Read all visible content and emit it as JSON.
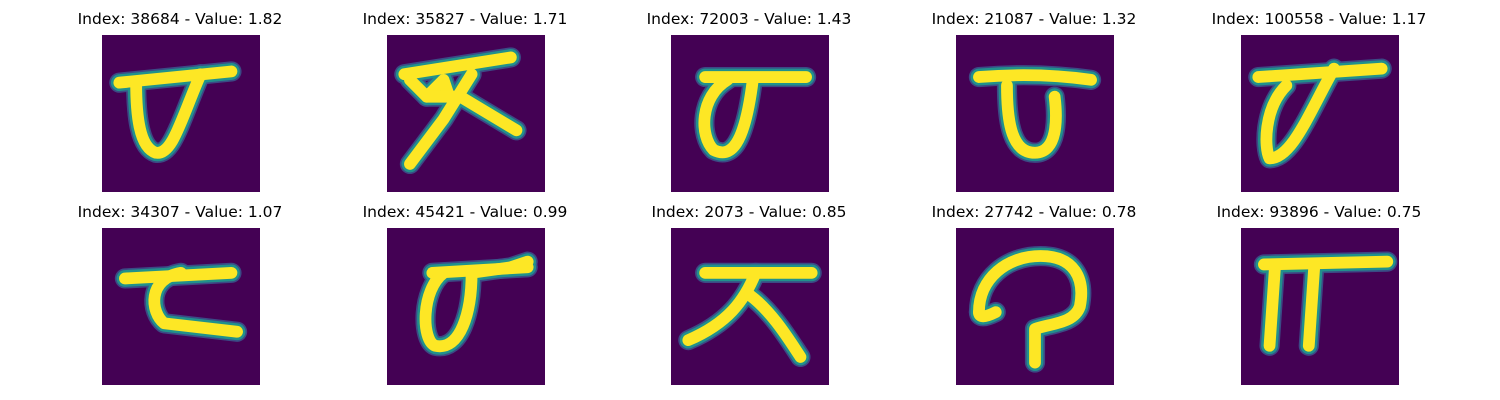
{
  "colors": {
    "background": "#440154",
    "stroke_core": "#fde725",
    "stroke_halo": "#21918c",
    "stroke_edge": "#3b528b"
  },
  "panels": [
    {
      "title": "Index: 38684 - Value: 1.82",
      "index": 38684,
      "value": 1.82
    },
    {
      "title": "Index: 35827 - Value: 1.71",
      "index": 35827,
      "value": 1.71
    },
    {
      "title": "Index: 72003 - Value: 1.43",
      "index": 72003,
      "value": 1.43
    },
    {
      "title": "Index: 21087 - Value: 1.32",
      "index": 21087,
      "value": 1.32
    },
    {
      "title": "Index: 100558 - Value: 1.17",
      "index": 100558,
      "value": 1.17
    },
    {
      "title": "Index: 34307 - Value: 1.07",
      "index": 34307,
      "value": 1.07
    },
    {
      "title": "Index: 45421 - Value: 0.99",
      "index": 45421,
      "value": 0.99
    },
    {
      "title": "Index: 2073 - Value: 0.85",
      "index": 2073,
      "value": 0.85
    },
    {
      "title": "Index: 27742 - Value: 0.78",
      "index": 27742,
      "value": 0.78
    },
    {
      "title": "Index: 93896 - Value: 0.75",
      "index": 93896,
      "value": 0.75
    }
  ]
}
